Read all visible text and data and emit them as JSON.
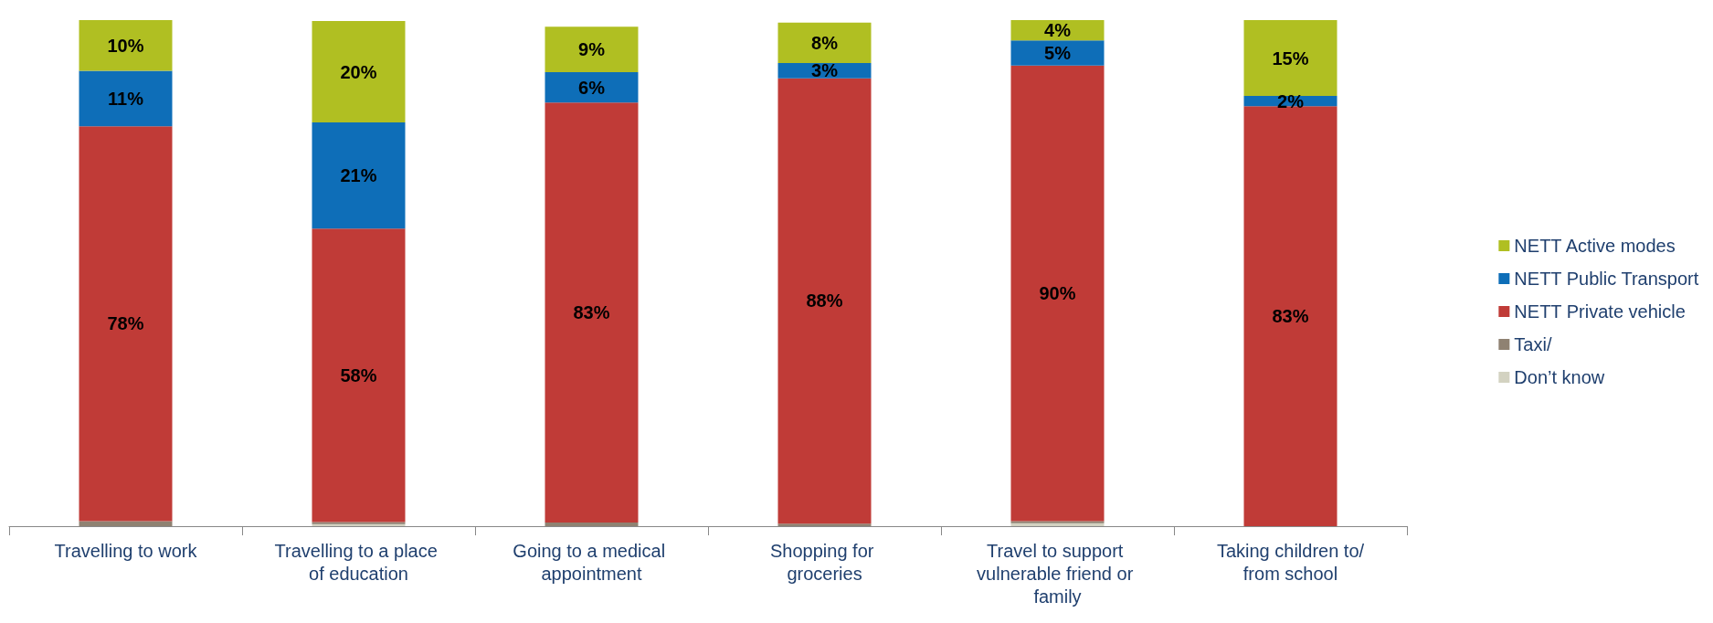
{
  "chart_data": {
    "type": "bar",
    "stacked": true,
    "categories": [
      "Travelling to work",
      "Travelling to a place of education",
      "Going to a medical appointment",
      "Shopping for groceries",
      "Travel to support vulnerable friend or family",
      "Taking children to/from school"
    ],
    "ylim": [
      0,
      100
    ],
    "legend": "right",
    "series": [
      {
        "name": "Don’t know",
        "color": "#d3d2c1",
        "values": [
          0,
          0.4,
          0,
          0,
          0.6,
          0
        ]
      },
      {
        "name": "Taxi/",
        "color": "#8f8272",
        "values": [
          1,
          0.4,
          0.7,
          0.5,
          0.4,
          0
        ]
      },
      {
        "name": "NETT Private vehicle",
        "color": "#c03b37",
        "values": [
          78,
          58,
          83,
          88,
          90,
          83
        ],
        "value_labels": [
          "78%",
          "58%",
          "83%",
          "88%",
          "90%",
          "83%"
        ]
      },
      {
        "name": "NETT Public Transport",
        "color": "#0e6eb8",
        "values": [
          11,
          21,
          6,
          3,
          5,
          2
        ],
        "value_labels": [
          "11%",
          "21%",
          "6%",
          "3%",
          "5%",
          "2%"
        ]
      },
      {
        "name": "NETT Active modes",
        "color": "#b0bf22",
        "values": [
          10,
          20,
          9,
          8,
          4,
          15
        ],
        "value_labels": [
          "10%",
          "20%",
          "9%",
          "8%",
          "4%",
          "15%"
        ]
      }
    ]
  }
}
